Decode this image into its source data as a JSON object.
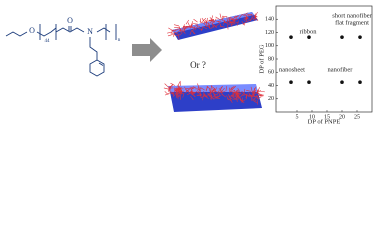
{
  "structure": {
    "labels": [
      "O",
      "44",
      "O",
      "N",
      "n"
    ]
  },
  "question": "Or ?",
  "chart_data": {
    "type": "scatter",
    "x_label": "DP of PNPE",
    "y_label": "DP of PEG",
    "x": [
      3,
      9,
      20,
      26,
      3,
      9,
      20,
      26
    ],
    "values": [
      113,
      113,
      113,
      113,
      45,
      45,
      45,
      45
    ],
    "color": "#111111",
    "xlim": [
      -2,
      30
    ],
    "xticks": [
      5,
      10,
      15,
      20,
      25
    ],
    "ylim": [
      0,
      160
    ],
    "yticks": [
      20,
      40,
      60,
      80,
      100,
      120,
      140
    ],
    "annotations": [
      "ribbon",
      "short nanofiber",
      "flat fragment",
      "nanosheet",
      "nanofiber"
    ]
  }
}
